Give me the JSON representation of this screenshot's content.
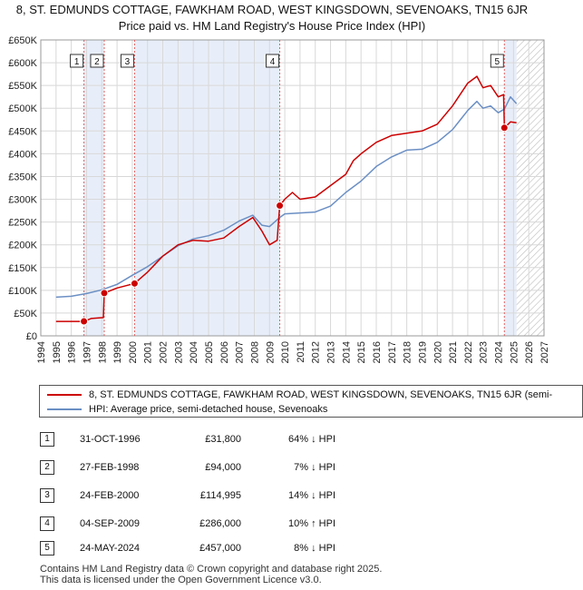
{
  "title": {
    "line1": "8, ST. EDMUNDS COTTAGE, FAWKHAM ROAD, WEST KINGSDOWN, SEVENOAKS, TN15 6JR",
    "line2": "Price paid vs. HM Land Registry's House Price Index (HPI)"
  },
  "colors": {
    "property": "#cc0000",
    "hpi": "#6b8fc4",
    "shade": "#e8eef9",
    "grid": "#d8d8d8"
  },
  "legend": {
    "property": "8, ST. EDMUNDS COTTAGE, FAWKHAM ROAD, WEST KINGSDOWN, SEVENOAKS, TN15 6JR (semi-",
    "hpi": "HPI: Average price, semi-detached house, Sevenoaks"
  },
  "sales": [
    {
      "num": "1",
      "date": "31-OCT-1996",
      "price": "£31,800",
      "hpi": "64% ↓ HPI"
    },
    {
      "num": "2",
      "date": "27-FEB-1998",
      "price": "£94,000",
      "hpi": "7% ↓ HPI"
    },
    {
      "num": "3",
      "date": "24-FEB-2000",
      "price": "£114,995",
      "hpi": "14% ↓ HPI"
    },
    {
      "num": "4",
      "date": "04-SEP-2009",
      "price": "£286,000",
      "hpi": "10% ↑ HPI"
    },
    {
      "num": "5",
      "date": "24-MAY-2024",
      "price": "£457,000",
      "hpi": "8% ↓ HPI"
    }
  ],
  "footer": {
    "line1": "Contains HM Land Registry data © Crown copyright and database right 2025.",
    "line2": "This data is licensed under the Open Government Licence v3.0."
  },
  "chart_data": {
    "type": "line",
    "xlim": [
      1994,
      2027
    ],
    "ylim": [
      0,
      650000
    ],
    "x_ticks": [
      "1994",
      "1995",
      "1996",
      "1997",
      "1998",
      "1999",
      "2000",
      "2001",
      "2002",
      "2003",
      "2004",
      "2005",
      "2006",
      "2007",
      "2008",
      "2009",
      "2010",
      "2011",
      "2012",
      "2013",
      "2014",
      "2015",
      "2016",
      "2017",
      "2018",
      "2019",
      "2020",
      "2021",
      "2022",
      "2023",
      "2024",
      "2025",
      "2026",
      "2027"
    ],
    "y_ticks": [
      {
        "value": 0,
        "label": "£0"
      },
      {
        "value": 50000,
        "label": "£50K"
      },
      {
        "value": 100000,
        "label": "£100K"
      },
      {
        "value": 150000,
        "label": "£150K"
      },
      {
        "value": 200000,
        "label": "£200K"
      },
      {
        "value": 250000,
        "label": "£250K"
      },
      {
        "value": 300000,
        "label": "£300K"
      },
      {
        "value": 350000,
        "label": "£350K"
      },
      {
        "value": 400000,
        "label": "£400K"
      },
      {
        "value": 450000,
        "label": "£450K"
      },
      {
        "value": 500000,
        "label": "£500K"
      },
      {
        "value": 550000,
        "label": "£550K"
      },
      {
        "value": 600000,
        "label": "£600K"
      },
      {
        "value": 650000,
        "label": "£650K"
      }
    ],
    "grid": true,
    "shaded_ranges": [
      [
        1996.83,
        1998.16
      ],
      [
        2000.15,
        2009.67
      ],
      [
        2024.4,
        2025.2
      ]
    ],
    "hatched_from": 2025.2,
    "series": [
      {
        "name": "8, ST. EDMUNDS COTTAGE, FAWKHAM ROAD, WEST KINGSDOWN, SEVENOAKS, TN15 6JR (semi-",
        "x": [
          1995.0,
          1996.83,
          1997.3,
          1998.1,
          1998.16,
          1999.0,
          2000.15,
          2001.0,
          2002.0,
          2003.0,
          2004.0,
          2005.0,
          2006.0,
          2007.0,
          2007.9,
          2008.5,
          2009.0,
          2009.5,
          2009.67,
          2010.0,
          2010.5,
          2011.0,
          2012.0,
          2013.0,
          2014.0,
          2014.5,
          2015.0,
          2016.0,
          2017.0,
          2018.0,
          2019.0,
          2020.0,
          2021.0,
          2022.0,
          2022.6,
          2023.0,
          2023.5,
          2024.0,
          2024.35,
          2024.4,
          2024.8,
          2025.2
        ],
        "values": [
          31800,
          31800,
          38000,
          40000,
          94000,
          105000,
          114995,
          140000,
          175000,
          200000,
          210000,
          208000,
          215000,
          240000,
          260000,
          230000,
          200000,
          210000,
          286000,
          300000,
          315000,
          300000,
          305000,
          330000,
          355000,
          385000,
          400000,
          425000,
          440000,
          445000,
          450000,
          465000,
          505000,
          555000,
          570000,
          545000,
          550000,
          525000,
          530000,
          457000,
          470000,
          468000
        ]
      },
      {
        "name": "HPI: Average price, semi-detached house, Sevenoaks",
        "x": [
          1995.0,
          1996.0,
          1997.0,
          1998.0,
          1999.0,
          2000.0,
          2001.0,
          2002.0,
          2003.0,
          2004.0,
          2005.0,
          2006.0,
          2007.0,
          2007.9,
          2008.5,
          2009.0,
          2009.67,
          2010.0,
          2011.0,
          2012.0,
          2013.0,
          2014.0,
          2015.0,
          2016.0,
          2017.0,
          2018.0,
          2019.0,
          2020.0,
          2021.0,
          2022.0,
          2022.6,
          2023.0,
          2023.5,
          2024.0,
          2024.4,
          2024.8,
          2025.2
        ],
        "values": [
          85000,
          87000,
          93000,
          101000,
          113000,
          133000,
          152000,
          175000,
          198000,
          213000,
          220000,
          232000,
          252000,
          265000,
          243000,
          240000,
          260000,
          268000,
          270000,
          272000,
          285000,
          315000,
          340000,
          372000,
          393000,
          408000,
          410000,
          425000,
          453000,
          495000,
          515000,
          500000,
          505000,
          490000,
          498000,
          525000,
          510000
        ]
      }
    ],
    "markers": [
      {
        "label": "1",
        "x": 1996.83,
        "y": 31800
      },
      {
        "label": "2",
        "x": 1998.16,
        "y": 94000
      },
      {
        "label": "3",
        "x": 2000.15,
        "y": 114995
      },
      {
        "label": "4",
        "x": 2009.67,
        "y": 286000
      },
      {
        "label": "5",
        "x": 2024.4,
        "y": 457000
      }
    ]
  }
}
